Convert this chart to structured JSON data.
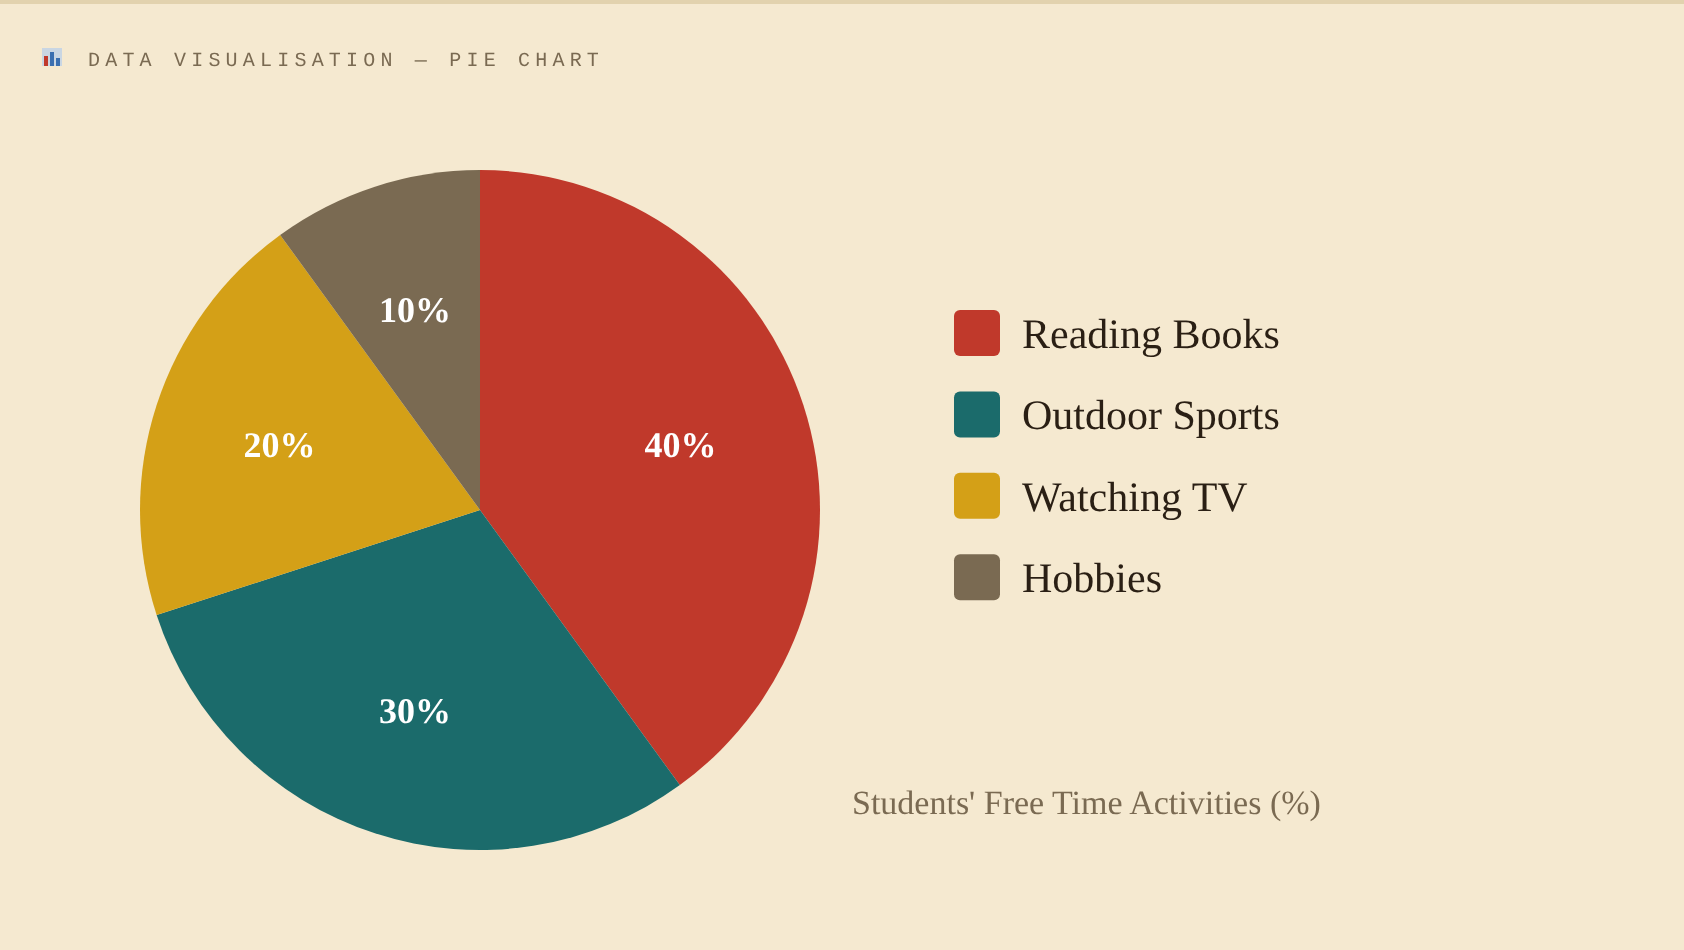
{
  "chart_data": {
    "type": "pie",
    "title": "Students' Free Time Activities (%)",
    "annotations": [
      "DATA VISUALISATION — PIE CHART"
    ],
    "categories": [
      "Reading Books",
      "Outdoor Sports",
      "Watching TV",
      "Hobbies"
    ],
    "values": [
      40,
      30,
      20,
      10
    ],
    "colors": [
      "#c0392b",
      "#1b6b6b",
      "#d4a017",
      "#7a6a52"
    ],
    "value_labels": [
      "40%",
      "30%",
      "20%",
      "10%"
    ],
    "legend": "right"
  }
}
